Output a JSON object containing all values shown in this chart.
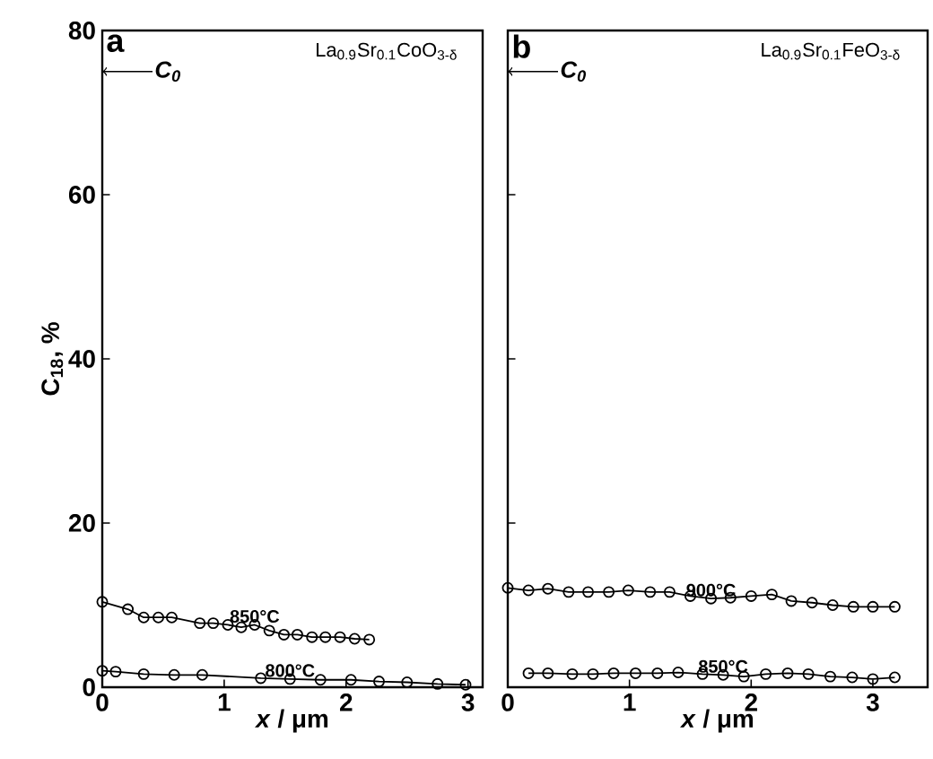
{
  "chart_data": [
    {
      "type": "line",
      "title": "a",
      "subtitle": "La$_{0.9}$Sr$_{0.1}$CoO$_{3-δ}$",
      "xlabel": "*x* / μm",
      "ylabel": "C$_{18}$, %",
      "xlim": [
        0,
        3.12
      ],
      "ylim": [
        0,
        80
      ],
      "xticks": [
        0,
        1,
        2,
        3
      ],
      "yticks": [
        0,
        20,
        40,
        60,
        80
      ],
      "marker": "circle",
      "line_style": "solid",
      "grid": false,
      "legend": false,
      "annotations": [
        {
          "text": "C$_{0}$",
          "x": 0,
          "y": 75
        }
      ],
      "series": [
        {
          "name": "850°C",
          "color": "#000000",
          "x": [
            0,
            0.21,
            0.34,
            0.46,
            0.57,
            0.8,
            0.91,
            1.03,
            1.14,
            1.25,
            1.37,
            1.49,
            1.6,
            1.72,
            1.83,
            1.95,
            2.07,
            2.19
          ],
          "values": [
            10.4,
            9.5,
            8.5,
            8.5,
            8.5,
            7.8,
            7.8,
            7.6,
            7.3,
            7.6,
            6.9,
            6.4,
            6.4,
            6.1,
            6.1,
            6.1,
            5.9,
            5.8
          ]
        },
        {
          "name": "800°C",
          "color": "#000000",
          "x": [
            0,
            0.11,
            0.34,
            0.59,
            0.82,
            1.3,
            1.54,
            1.79,
            2.04,
            2.27,
            2.5,
            2.75,
            2.98
          ],
          "values": [
            2.0,
            1.9,
            1.6,
            1.5,
            1.5,
            1.1,
            1.0,
            0.9,
            0.9,
            0.7,
            0.6,
            0.4,
            0.3
          ]
        }
      ]
    },
    {
      "type": "line",
      "title": "b",
      "subtitle": "La$_{0.9}$Sr$_{0.1}$FeO$_{3-δ}$",
      "xlabel": "*x* / μm",
      "xlim": [
        0,
        3.45
      ],
      "ylim": [
        0,
        80
      ],
      "xticks": [
        0,
        1,
        2,
        3
      ],
      "yticks": [
        0,
        20,
        40,
        60,
        80
      ],
      "tick_labels": "x",
      "marker": "circle",
      "line_style": "solid",
      "grid": false,
      "legend": false,
      "annotations": [
        {
          "text": "C$_{0}$",
          "x": 0,
          "y": 75
        }
      ],
      "series": [
        {
          "name": "900°C",
          "color": "#000000",
          "x": [
            0,
            0.17,
            0.33,
            0.5,
            0.66,
            0.83,
            0.99,
            1.17,
            1.33,
            1.5,
            1.67,
            1.83,
            2.0,
            2.17,
            2.33,
            2.5,
            2.67,
            2.84,
            3.0,
            3.18
          ],
          "values": [
            12.1,
            11.8,
            12.0,
            11.6,
            11.6,
            11.6,
            11.8,
            11.6,
            11.6,
            11.1,
            10.8,
            10.9,
            11.1,
            11.3,
            10.5,
            10.3,
            10.0,
            9.8,
            9.8,
            9.8
          ]
        },
        {
          "name": "850°C",
          "color": "#000000",
          "x": [
            0.17,
            0.33,
            0.53,
            0.7,
            0.87,
            1.05,
            1.23,
            1.4,
            1.6,
            1.77,
            1.94,
            2.12,
            2.3,
            2.47,
            2.65,
            2.83,
            3.0,
            3.18
          ],
          "values": [
            1.7,
            1.7,
            1.6,
            1.6,
            1.7,
            1.7,
            1.7,
            1.8,
            1.6,
            1.5,
            1.3,
            1.6,
            1.7,
            1.6,
            1.3,
            1.2,
            1.0,
            1.2
          ]
        }
      ]
    }
  ]
}
